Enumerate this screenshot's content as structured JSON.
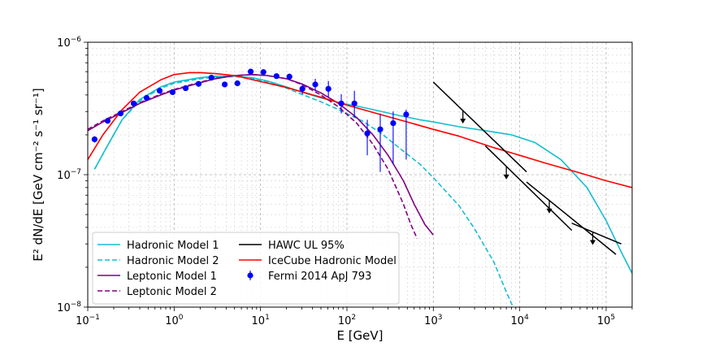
{
  "chart_data": {
    "type": "line",
    "title": "",
    "xlabel": "E [GeV]",
    "ylabel": "E² dN/dE [GeV cm⁻² s⁻¹ sr⁻¹]",
    "xscale": "log",
    "yscale": "log",
    "xlim": [
      0.1,
      200000
    ],
    "ylim": [
      1e-08,
      1e-06
    ],
    "grid": true,
    "x_ticks": [
      {
        "value": 0.1,
        "base": "10",
        "exp": "−1"
      },
      {
        "value": 1,
        "base": "10",
        "exp": "0"
      },
      {
        "value": 10,
        "base": "10",
        "exp": "1"
      },
      {
        "value": 100,
        "base": "10",
        "exp": "2"
      },
      {
        "value": 1000,
        "base": "10",
        "exp": "3"
      },
      {
        "value": 10000,
        "base": "10",
        "exp": "4"
      },
      {
        "value": 100000,
        "base": "10",
        "exp": "5"
      }
    ],
    "y_ticks": [
      {
        "value": 1e-08,
        "base": "10",
        "exp": "−8"
      },
      {
        "value": 1e-07,
        "base": "10",
        "exp": "−7"
      },
      {
        "value": 1e-06,
        "base": "10",
        "exp": "−6"
      }
    ],
    "legend_position": "bottom-left",
    "legend_columns": [
      [
        "Hadronic Model 1",
        "Hadronic Model 2",
        "Leptonic Model 1",
        "Leptonic Model 2"
      ],
      [
        "HAWC UL 95%",
        "IceCube Hadronic Model",
        "Fermi 2014 ApJ 793"
      ]
    ],
    "series": [
      {
        "name": "Hadronic Model 1",
        "color": "#17becf",
        "style": "solid",
        "x": [
          0.12,
          0.16,
          0.25,
          0.4,
          0.7,
          1,
          2,
          3,
          5,
          8,
          12,
          20,
          30,
          50,
          80,
          130,
          200,
          400,
          700,
          1000,
          2000,
          4000,
          8000,
          15000,
          30000,
          60000,
          100000,
          150000,
          200000
        ],
        "y": [
          1.1e-07,
          1.55e-07,
          2.6e-07,
          3.7e-07,
          4.6e-07,
          5e-07,
          5.4e-07,
          5.55e-07,
          5.55e-07,
          5.4e-07,
          5.1e-07,
          4.6e-07,
          4.2e-07,
          3.8e-07,
          3.5e-07,
          3.3e-07,
          3.1e-07,
          2.8e-07,
          2.6e-07,
          2.5e-07,
          2.3e-07,
          2.15e-07,
          2e-07,
          1.75e-07,
          1.3e-07,
          8e-08,
          4.5e-08,
          2.6e-08,
          1.8e-08
        ]
      },
      {
        "name": "Hadronic Model 2",
        "color": "#17becf",
        "style": "dashed",
        "x": [
          0.12,
          0.16,
          0.25,
          0.4,
          0.7,
          1,
          2,
          3,
          5,
          8,
          12,
          20,
          30,
          50,
          80,
          150,
          250,
          400,
          700,
          1000,
          2000,
          3000,
          5000,
          7000,
          9000
        ],
        "y": [
          1.1e-07,
          1.55e-07,
          2.6e-07,
          3.6e-07,
          4.5e-07,
          4.9e-07,
          5.3e-07,
          5.45e-07,
          5.5e-07,
          5.35e-07,
          5e-07,
          4.5e-07,
          4.05e-07,
          3.55e-07,
          3.1e-07,
          2.55e-07,
          2.05e-07,
          1.6e-07,
          1.2e-07,
          9.5e-08,
          5.8e-08,
          3.9e-08,
          2.2e-08,
          1.3e-08,
          9e-09
        ]
      },
      {
        "name": "Leptonic Model 1",
        "color": "#800080",
        "style": "solid",
        "x": [
          0.1,
          0.15,
          0.25,
          0.4,
          0.7,
          1,
          2,
          3,
          5,
          8,
          12,
          20,
          30,
          50,
          80,
          130,
          200,
          300,
          450,
          600,
          800,
          1000
        ],
        "y": [
          2.15e-07,
          2.5e-07,
          2.95e-07,
          3.45e-07,
          4e-07,
          4.35e-07,
          4.95e-07,
          5.3e-07,
          5.6e-07,
          5.7e-07,
          5.6e-07,
          5.3e-07,
          4.85e-07,
          4.15e-07,
          3.45e-07,
          2.7e-07,
          2e-07,
          1.4e-07,
          9e-08,
          6e-08,
          4.2e-08,
          3.5e-08
        ]
      },
      {
        "name": "Leptonic Model 2",
        "color": "#800080",
        "style": "dashed",
        "x": [
          0.1,
          0.15,
          0.25,
          0.4,
          0.7,
          1,
          2,
          3,
          5,
          8,
          12,
          20,
          30,
          50,
          80,
          130,
          200,
          300,
          450,
          550,
          650
        ],
        "y": [
          2.2e-07,
          2.55e-07,
          3e-07,
          3.5e-07,
          4.05e-07,
          4.4e-07,
          5e-07,
          5.35e-07,
          5.6e-07,
          5.7e-07,
          5.6e-07,
          5.3e-07,
          4.8e-07,
          4e-07,
          3.25e-07,
          2.45e-07,
          1.7e-07,
          1.1e-07,
          6e-08,
          4.2e-08,
          3.3e-08
        ]
      },
      {
        "name": "IceCube Hadronic Model",
        "color": "#ff0000",
        "style": "solid",
        "x": [
          0.1,
          0.15,
          0.25,
          0.4,
          0.7,
          1,
          1.5,
          2,
          3,
          5,
          10,
          20,
          50,
          100,
          200,
          500,
          1000,
          2000,
          5000,
          10000,
          20000,
          50000,
          100000,
          200000
        ],
        "y": [
          1.3e-07,
          2e-07,
          3.1e-07,
          4.2e-07,
          5.2e-07,
          5.7e-07,
          5.9e-07,
          5.9e-07,
          5.8e-07,
          5.6e-07,
          5.05e-07,
          4.55e-07,
          3.85e-07,
          3.35e-07,
          2.95e-07,
          2.5e-07,
          2.2e-07,
          1.95e-07,
          1.6e-07,
          1.4e-07,
          1.22e-07,
          1.03e-07,
          9e-08,
          8e-08
        ]
      }
    ],
    "hawc_ul": {
      "name": "HAWC UL 95%",
      "color": "#000000",
      "segments": [
        {
          "x": [
            1000,
            12000
          ],
          "y": [
            5e-07,
            1.05e-07
          ],
          "arrow_x": 2200
        },
        {
          "x": [
            4000,
            40000
          ],
          "y": [
            1.65e-07,
            3.8e-08
          ],
          "arrow_x": 7000
        },
        {
          "x": [
            12000,
            130000
          ],
          "y": [
            8.8e-08,
            2.5e-08
          ],
          "arrow_x": 22000
        },
        {
          "x": [
            40000,
            150000
          ],
          "y": [
            4.3e-08,
            3e-08
          ],
          "arrow_x": 70000
        }
      ]
    },
    "fermi": {
      "name": "Fermi 2014 ApJ 793",
      "color": "#0000ff",
      "points": [
        {
          "x": 0.12,
          "y": 1.85e-07,
          "ylo": 1.75e-07,
          "yhi": 1.95e-07
        },
        {
          "x": 0.17,
          "y": 2.55e-07,
          "ylo": 2.45e-07,
          "yhi": 2.65e-07
        },
        {
          "x": 0.24,
          "y": 2.9e-07,
          "ylo": 2.8e-07,
          "yhi": 3e-07
        },
        {
          "x": 0.34,
          "y": 3.45e-07,
          "ylo": 3.35e-07,
          "yhi": 3.55e-07
        },
        {
          "x": 0.48,
          "y": 3.8e-07,
          "ylo": 3.7e-07,
          "yhi": 3.9e-07
        },
        {
          "x": 0.68,
          "y": 4.3e-07,
          "ylo": 4.2e-07,
          "yhi": 4.4e-07
        },
        {
          "x": 0.96,
          "y": 4.2e-07,
          "ylo": 4.1e-07,
          "yhi": 4.3e-07
        },
        {
          "x": 1.36,
          "y": 4.5e-07,
          "ylo": 4.4e-07,
          "yhi": 4.6e-07
        },
        {
          "x": 1.92,
          "y": 4.85e-07,
          "ylo": 4.75e-07,
          "yhi": 4.95e-07
        },
        {
          "x": 2.7,
          "y": 5.4e-07,
          "ylo": 5.3e-07,
          "yhi": 5.5e-07
        },
        {
          "x": 3.85,
          "y": 4.8e-07,
          "ylo": 4.7e-07,
          "yhi": 4.9e-07
        },
        {
          "x": 5.4,
          "y": 4.9e-07,
          "ylo": 4.8e-07,
          "yhi": 5e-07
        },
        {
          "x": 7.7,
          "y": 6e-07,
          "ylo": 5.85e-07,
          "yhi": 6.15e-07
        },
        {
          "x": 10.8,
          "y": 5.95e-07,
          "ylo": 5.8e-07,
          "yhi": 6.1e-07
        },
        {
          "x": 15.3,
          "y": 5.55e-07,
          "ylo": 5.3e-07,
          "yhi": 5.8e-07
        },
        {
          "x": 21.6,
          "y": 5.5e-07,
          "ylo": 5.2e-07,
          "yhi": 5.8e-07
        },
        {
          "x": 30.5,
          "y": 4.45e-07,
          "ylo": 4.05e-07,
          "yhi": 4.85e-07
        },
        {
          "x": 43,
          "y": 4.8e-07,
          "ylo": 4.3e-07,
          "yhi": 5.3e-07
        },
        {
          "x": 61,
          "y": 4.45e-07,
          "ylo": 3.85e-07,
          "yhi": 5.1e-07
        },
        {
          "x": 86,
          "y": 3.45e-07,
          "ylo": 2.9e-07,
          "yhi": 4.05e-07
        },
        {
          "x": 122,
          "y": 3.45e-07,
          "ylo": 2.7e-07,
          "yhi": 4.3e-07
        },
        {
          "x": 172,
          "y": 2.05e-07,
          "ylo": 1.4e-07,
          "yhi": 2.6e-07
        },
        {
          "x": 243,
          "y": 2.2e-07,
          "ylo": 1.05e-07,
          "yhi": 2.9e-07
        },
        {
          "x": 343,
          "y": 2.45e-07,
          "ylo": 1.2e-07,
          "yhi": 3e-07
        },
        {
          "x": 485,
          "y": 2.85e-07,
          "ylo": 1.3e-07,
          "yhi": 3.1e-07
        }
      ]
    }
  }
}
